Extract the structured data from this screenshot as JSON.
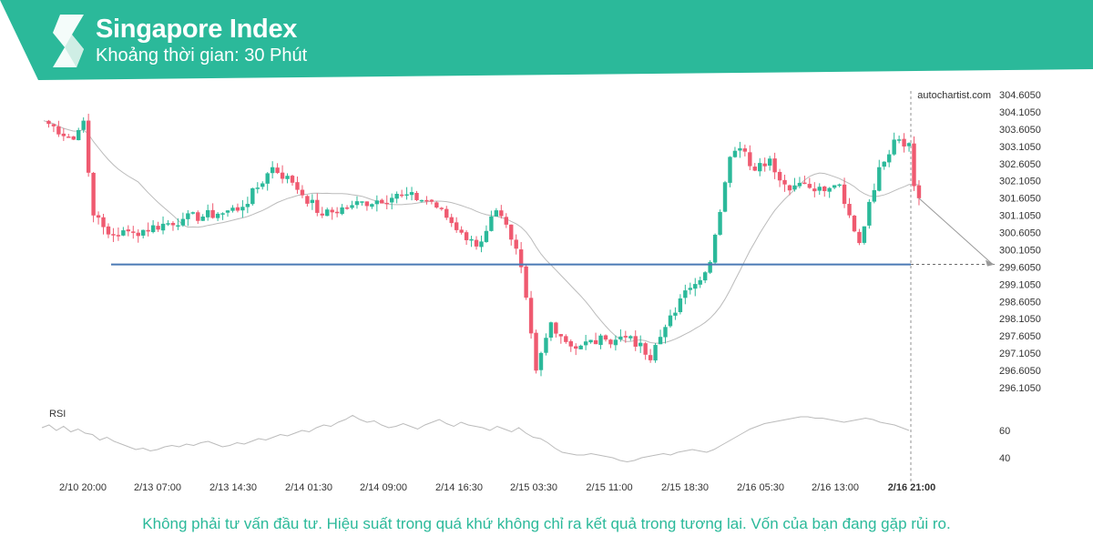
{
  "header": {
    "title": "Singapore Index",
    "subtitle": "Khoảng thời gian: 30 Phút",
    "band_color": "#2bb99a"
  },
  "watermark": "autochartist.com",
  "disclaimer": "Không phải tư vấn đầu tư. Hiệu suất trong quá khứ không chỉ ra kết quả trong tương lai. Vốn của bạn đang gặp rủi ro.",
  "chart_data": [
    {
      "type": "candlestick",
      "interval": "30 Phút",
      "grid": false,
      "colors": {
        "up": "#2bb99a",
        "down": "#ef5a70",
        "level": "#4a79b5",
        "moving_average": "#bbbbbb",
        "forecast": "#999999"
      },
      "ylim": [
        295.85,
        304.85
      ],
      "y_ticks": [
        "304.6050",
        "304.1050",
        "303.6050",
        "303.1050",
        "302.6050",
        "302.1050",
        "301.6050",
        "301.1050",
        "300.6050",
        "300.1050",
        "299.6050",
        "299.1050",
        "298.6050",
        "298.1050",
        "297.6050",
        "297.1050",
        "296.6050",
        "296.1050"
      ],
      "x_ticks": [
        "2/10 20:00",
        "2/13 07:00",
        "2/13 14:30",
        "2/14 01:30",
        "2/14 09:00",
        "2/14 16:30",
        "2/15 03:30",
        "2/15 11:00",
        "2/15 18:30",
        "2/16 05:30",
        "2/16 13:00",
        "2/16 21:00"
      ],
      "resistance_level": 299.68,
      "forecast_target": 299.68,
      "close_anchors": [
        {
          "slot": 0,
          "close": 303.85
        },
        {
          "slot": 6,
          "close": 303.3
        },
        {
          "slot": 8,
          "close": 303.85
        },
        {
          "slot": 10,
          "close": 301.1
        },
        {
          "slot": 13,
          "close": 300.55
        },
        {
          "slot": 18,
          "close": 300.6
        },
        {
          "slot": 28,
          "close": 301.0
        },
        {
          "slot": 35,
          "close": 301.15
        },
        {
          "slot": 40,
          "close": 301.35
        },
        {
          "slot": 46,
          "close": 302.5
        },
        {
          "slot": 50,
          "close": 302.05
        },
        {
          "slot": 56,
          "close": 301.1
        },
        {
          "slot": 62,
          "close": 301.4
        },
        {
          "slot": 72,
          "close": 301.7
        },
        {
          "slot": 78,
          "close": 301.5
        },
        {
          "slot": 84,
          "close": 300.6
        },
        {
          "slot": 87,
          "close": 300.2
        },
        {
          "slot": 91,
          "close": 301.25
        },
        {
          "slot": 94,
          "close": 300.4
        },
        {
          "slot": 96,
          "close": 299.6
        },
        {
          "slot": 99,
          "close": 296.6
        },
        {
          "slot": 102,
          "close": 298.0
        },
        {
          "slot": 106,
          "close": 297.3
        },
        {
          "slot": 113,
          "close": 297.5
        },
        {
          "slot": 118,
          "close": 297.6
        },
        {
          "slot": 122,
          "close": 296.9
        },
        {
          "slot": 126,
          "close": 298.2
        },
        {
          "slot": 130,
          "close": 299.0
        },
        {
          "slot": 134,
          "close": 299.75
        },
        {
          "slot": 136,
          "close": 301.2
        },
        {
          "slot": 138,
          "close": 302.8
        },
        {
          "slot": 140,
          "close": 303.05
        },
        {
          "slot": 143,
          "close": 302.4
        },
        {
          "slot": 146,
          "close": 302.75
        },
        {
          "slot": 149,
          "close": 302.0
        },
        {
          "slot": 154,
          "close": 301.9
        },
        {
          "slot": 160,
          "close": 302.0
        },
        {
          "slot": 164,
          "close": 300.3
        },
        {
          "slot": 168,
          "close": 302.5
        },
        {
          "slot": 171,
          "close": 303.3
        },
        {
          "slot": 174,
          "close": 303.2
        },
        {
          "slot": 175,
          "close": 301.95
        },
        {
          "slot": 176,
          "close": 301.6
        }
      ],
      "rsi": {
        "label": "RSI",
        "y_ticks": [
          60,
          40
        ],
        "values": [
          62,
          64,
          60,
          63,
          59,
          61,
          58,
          57,
          53,
          55,
          52,
          50,
          48,
          46,
          47,
          45,
          46,
          48,
          49,
          48,
          50,
          49,
          51,
          52,
          50,
          48,
          49,
          51,
          50,
          52,
          54,
          53,
          55,
          57,
          56,
          58,
          60,
          59,
          62,
          64,
          63,
          66,
          68,
          71,
          68,
          66,
          67,
          64,
          62,
          63,
          65,
          63,
          61,
          64,
          66,
          68,
          65,
          63,
          66,
          64,
          63,
          62,
          60,
          63,
          61,
          59,
          62,
          58,
          55,
          54,
          51,
          47,
          44,
          43,
          42,
          42,
          43,
          42,
          41,
          40,
          38,
          37,
          38,
          40,
          41,
          42,
          43,
          42,
          44,
          45,
          46,
          45,
          44,
          46,
          49,
          52,
          55,
          58,
          61,
          63,
          65,
          66,
          67,
          68,
          69,
          70,
          70,
          69,
          69,
          68,
          67,
          66,
          67,
          68,
          69,
          68,
          66,
          65,
          64,
          62,
          60
        ]
      }
    }
  ]
}
